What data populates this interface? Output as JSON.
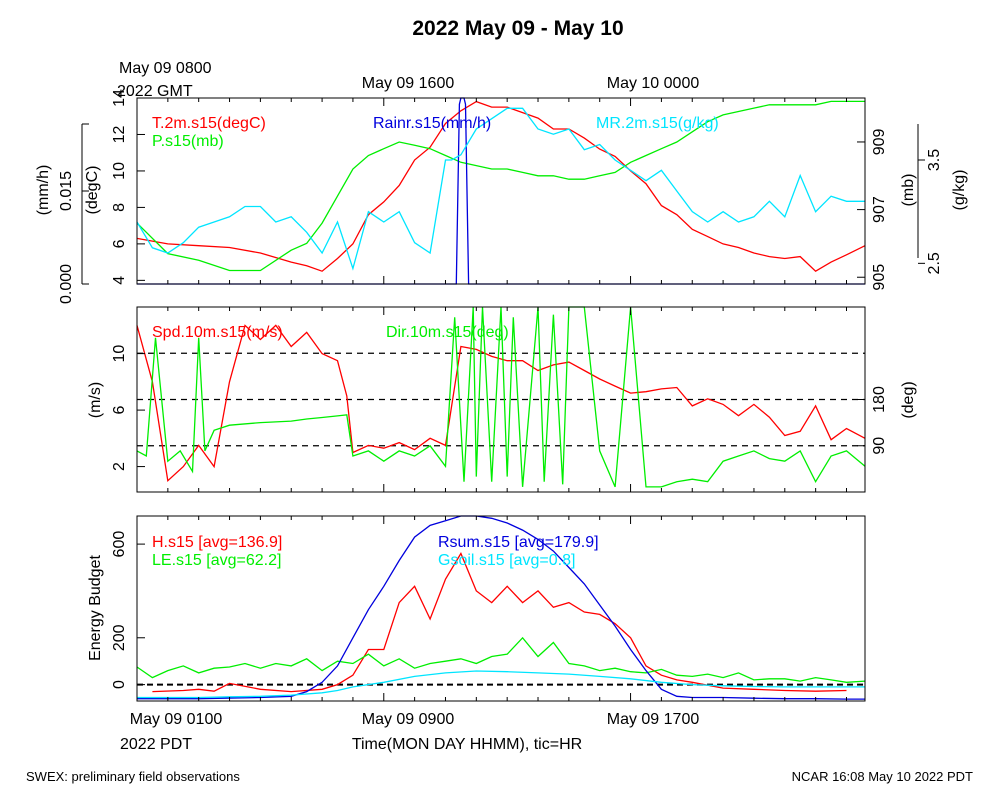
{
  "title": "2022 May 09 - May 10",
  "top_labels": {
    "gmt_start": "May 09 0800",
    "gmt_year": "2022 GMT",
    "gmt_mid": "May 09 1600",
    "gmt_end": "May 10 0000"
  },
  "bottom_labels": {
    "pdt_start": "May 09 0100",
    "pdt_year": "2022 PDT",
    "pdt_mid": "May 09 0900",
    "pdt_end": "May 09 1700"
  },
  "xlabel": "Time(MON DAY HHMM), tic=HR",
  "footer": {
    "left": "SWEX: preliminary field observations",
    "right": "NCAR 16:08 May 10 2022 PDT"
  },
  "colors": {
    "red": "#ff0000",
    "green": "#00ee00",
    "blue": "#0000dd",
    "cyan": "#00e5ff",
    "black": "#000000"
  },
  "chart_data": [
    {
      "type": "line",
      "x_range_hours_pdt": [
        1,
        24.6
      ],
      "legend": {
        "t2m": "T.2m.s15(degC)",
        "p": "P.s15(mb)",
        "rain": "Rainr.s15(mm/h)",
        "mr": "MR.2m.s15(g/kg)"
      },
      "axes": {
        "left_inner": {
          "label": "(degC)",
          "range": [
            3.8,
            14
          ],
          "ticks": [
            "4",
            "6",
            "8",
            "10",
            "12",
            "14"
          ]
        },
        "left_outer": {
          "label": "(mm/h)",
          "range": [
            0,
            0.03
          ],
          "ticks": [
            "0.000",
            "0.015"
          ]
        },
        "right_inner": {
          "label": "(mb)",
          "range": [
            904.8,
            910.3
          ],
          "ticks": [
            "905",
            "907",
            "909"
          ]
        },
        "right_outer": {
          "label": "(g/kg)",
          "range": [
            2.3,
            4.1
          ],
          "ticks": [
            "2.5",
            "3.5"
          ]
        }
      },
      "series": [
        {
          "name": "T.2m.s15(degC)",
          "axis": "left_inner",
          "color": "red",
          "x": [
            1,
            2,
            3,
            4,
            5,
            6,
            6.5,
            7,
            7.5,
            8,
            8.5,
            9,
            9.5,
            10,
            10.5,
            11,
            11.5,
            12,
            12.5,
            13,
            13.5,
            14,
            14.5,
            15,
            15.5,
            16,
            16.5,
            17,
            17.5,
            18,
            18.5,
            19,
            19.5,
            20,
            20.5,
            21,
            21.5,
            22,
            22.5,
            23,
            23.5,
            24,
            24.6
          ],
          "y": [
            6.3,
            6,
            5.9,
            5.8,
            5.5,
            5,
            4.8,
            4.5,
            5.2,
            6,
            7.6,
            8.3,
            9.2,
            10.6,
            11.3,
            12.6,
            13.3,
            13.8,
            13.5,
            13.5,
            13.2,
            12.9,
            12.3,
            12.3,
            11.8,
            11.2,
            10.8,
            10,
            9.3,
            8.1,
            7.6,
            6.8,
            6.4,
            6,
            5.8,
            5.5,
            5.3,
            5.2,
            5.3,
            4.5,
            5,
            5.4,
            5.9
          ]
        },
        {
          "name": "P.s15(mb)",
          "axis": "right_inner",
          "color": "green",
          "x": [
            1,
            2,
            3,
            4,
            5,
            6,
            6.5,
            7,
            7.5,
            8,
            8.5,
            9,
            9.5,
            10,
            10.5,
            11,
            11.5,
            12,
            12.5,
            13,
            13.5,
            14,
            14.5,
            15,
            15.5,
            16,
            16.5,
            17,
            17.5,
            18,
            18.5,
            19,
            19.5,
            20,
            20.5,
            21,
            21.5,
            22,
            22.5,
            23,
            23.5,
            24,
            24.6
          ],
          "y": [
            906.6,
            905.7,
            905.5,
            905.2,
            905.2,
            905.8,
            906,
            906.6,
            907.4,
            908.2,
            908.6,
            908.8,
            909,
            908.9,
            908.8,
            908.6,
            908.4,
            908.3,
            908.2,
            908.2,
            908.1,
            908.0,
            908.0,
            907.9,
            907.9,
            908.0,
            908.1,
            908.4,
            908.6,
            908.8,
            909.0,
            909.3,
            909.6,
            909.8,
            909.9,
            910.0,
            910.1,
            910.1,
            910.1,
            910.1,
            910.2,
            910.2,
            910.2
          ]
        },
        {
          "name": "Rainr.s15(mm/h)",
          "axis": "left_outer",
          "color": "blue",
          "x": [
            1,
            11.35,
            11.45,
            11.5,
            11.55,
            11.6,
            11.65,
            11.75,
            24.6
          ],
          "y": [
            0,
            0,
            0.029,
            0.03,
            0.031,
            0.03,
            0.029,
            0,
            0
          ]
        },
        {
          "name": "MR.2m.s15(g/kg)",
          "axis": "right_outer",
          "color": "cyan",
          "x": [
            1,
            1.5,
            2,
            2.5,
            3,
            3.5,
            4,
            4.5,
            5,
            5.5,
            6,
            6.5,
            7,
            7.5,
            8,
            8.5,
            9,
            9.5,
            10,
            10.5,
            11,
            11.2,
            11.5,
            12,
            12.5,
            13,
            13.5,
            14,
            14.5,
            15,
            15.5,
            16,
            16.5,
            17,
            17.5,
            18,
            18.5,
            19,
            19.5,
            20,
            20.5,
            21,
            21.5,
            22,
            22.5,
            23,
            23.5,
            24,
            24.6
          ],
          "y": [
            2.9,
            2.65,
            2.6,
            2.7,
            2.85,
            2.9,
            2.95,
            3.05,
            3.05,
            2.9,
            2.95,
            2.8,
            2.6,
            2.9,
            2.45,
            3.0,
            2.9,
            3.0,
            2.7,
            2.6,
            3.5,
            3.5,
            3.55,
            3.8,
            3.9,
            4.0,
            4.0,
            3.8,
            3.75,
            3.8,
            3.6,
            3.65,
            3.5,
            3.4,
            3.3,
            3.4,
            3.2,
            3.0,
            2.9,
            3.0,
            2.9,
            2.95,
            3.1,
            2.95,
            3.35,
            3.0,
            3.15,
            3.1,
            3.1
          ]
        }
      ]
    },
    {
      "type": "line",
      "x_range_hours_pdt": [
        1,
        24.6
      ],
      "legend": {
        "spd": "Spd.10m.s15(m/s)",
        "dir": "Dir.10m.s15(deg)"
      },
      "axes": {
        "left": {
          "label": "(m/s)",
          "range": [
            0.2,
            13.3
          ],
          "ticks": [
            "2",
            "6",
            "10"
          ]
        },
        "right": {
          "label": "(deg)",
          "range": [
            0,
            360
          ],
          "ticks": [
            "90",
            "180"
          ]
        }
      },
      "reference_lines_deg": [
        90,
        180,
        270
      ],
      "series": [
        {
          "name": "Spd.10m.s15(m/s)",
          "axis": "left",
          "color": "red",
          "x": [
            1,
            1.5,
            2,
            2.5,
            3,
            3.5,
            4,
            4.5,
            5,
            5.5,
            6,
            6.5,
            7,
            7.5,
            7.8,
            8,
            8.5,
            9,
            9.5,
            10,
            10.5,
            11,
            11.5,
            12,
            12.5,
            13,
            13.5,
            14,
            14.5,
            15,
            15.5,
            16,
            16.5,
            17,
            17.5,
            18,
            18.5,
            19,
            19.5,
            20,
            20.5,
            21,
            21.5,
            22,
            22.5,
            23,
            23.5,
            24,
            24.6
          ],
          "y": [
            12,
            8,
            1,
            2,
            3.5,
            2,
            8,
            12,
            11,
            12,
            10.5,
            11.5,
            10,
            9.5,
            7,
            3,
            3.5,
            3.3,
            3.7,
            3.2,
            4,
            3.5,
            10.5,
            10.3,
            9.8,
            9.5,
            9.5,
            8.8,
            9.2,
            9.4,
            8.8,
            8.2,
            7.7,
            7.2,
            7.3,
            7.5,
            7.6,
            6.3,
            6.8,
            6.4,
            5.6,
            6.4,
            5.5,
            4.2,
            4.5,
            6.3,
            3.9,
            4.7,
            4
          ]
        },
        {
          "name": "Dir.10m.s15(deg)",
          "axis": "right",
          "color": "green",
          "x": [
            1,
            1.3,
            1.6,
            2,
            2.4,
            2.8,
            3,
            3.2,
            3.5,
            4,
            5,
            6,
            6.5,
            7,
            7.5,
            7.8,
            8,
            8.5,
            9,
            9.5,
            10,
            10.5,
            11,
            11.3,
            11.6,
            11.9,
            12,
            12.2,
            12.5,
            12.8,
            13,
            13.2,
            13.5,
            14,
            14.2,
            14.5,
            14.8,
            15,
            15.5,
            16,
            16.5,
            17,
            17.5,
            18,
            18.5,
            19,
            19.5,
            20,
            20.5,
            21,
            21.5,
            22,
            22.5,
            23,
            23.5,
            24,
            24.6
          ],
          "y": [
            80,
            70,
            300,
            60,
            80,
            40,
            300,
            80,
            120,
            130,
            135,
            138,
            142,
            145,
            148,
            150,
            70,
            80,
            60,
            80,
            70,
            90,
            50,
            340,
            20,
            360,
            30,
            360,
            20,
            360,
            30,
            340,
            10,
            360,
            20,
            345,
            15,
            360,
            360,
            80,
            10,
            360,
            10,
            10,
            20,
            25,
            20,
            60,
            70,
            80,
            65,
            60,
            80,
            20,
            70,
            80,
            50
          ]
        }
      ]
    },
    {
      "type": "line",
      "x_range_hours_pdt": [
        1,
        24.6
      ],
      "legend": {
        "h": "H.s15 [avg=136.9]",
        "le": "LE.s15 [avg=62.2]",
        "rsum": "Rsum.s15 [avg=179.9]",
        "gsoil": "Gsoil.s15 [avg=0.8]"
      },
      "axes": {
        "left": {
          "label": "Energy Budget",
          "range": [
            -70,
            720
          ],
          "ticks": [
            "0",
            "200",
            "600"
          ]
        }
      },
      "reference_lines": [
        0
      ],
      "series": [
        {
          "name": "H.s15 [avg=136.9]",
          "color": "red",
          "x": [
            1.5,
            2.5,
            3,
            3.5,
            4,
            5,
            6,
            7,
            7.5,
            8,
            8.5,
            9,
            9.5,
            10,
            10.5,
            11,
            11.5,
            12,
            12.5,
            13,
            13.5,
            14,
            14.5,
            15,
            15.5,
            16,
            16.5,
            17,
            17.5,
            18,
            18.5,
            19,
            20,
            21,
            22,
            23,
            24
          ],
          "y": [
            -30,
            -25,
            -20,
            -28,
            5,
            -20,
            -30,
            -20,
            0,
            40,
            150,
            150,
            350,
            420,
            280,
            450,
            560,
            400,
            350,
            420,
            350,
            400,
            330,
            350,
            310,
            300,
            260,
            200,
            80,
            40,
            20,
            10,
            -15,
            -20,
            -25,
            -28,
            -25
          ]
        },
        {
          "name": "LE.s15 [avg=62.2]",
          "color": "green",
          "x": [
            1,
            1.5,
            2,
            2.5,
            3,
            3.5,
            4,
            4.5,
            5,
            5.5,
            6,
            6.5,
            7,
            7.5,
            8,
            8.5,
            9,
            9.5,
            10,
            10.5,
            11,
            11.5,
            12,
            12.5,
            13,
            13.5,
            14,
            14.5,
            15,
            15.5,
            16,
            16.5,
            17,
            17.5,
            18,
            18.5,
            19,
            19.5,
            20,
            20.5,
            21,
            21.5,
            22,
            22.5,
            23,
            23.5,
            24,
            24.6
          ],
          "y": [
            75,
            30,
            60,
            80,
            50,
            70,
            75,
            90,
            70,
            90,
            80,
            110,
            60,
            100,
            90,
            130,
            80,
            110,
            70,
            90,
            100,
            110,
            90,
            120,
            130,
            200,
            120,
            180,
            90,
            80,
            60,
            70,
            55,
            50,
            65,
            40,
            35,
            45,
            30,
            50,
            20,
            25,
            25,
            15,
            30,
            20,
            10,
            15
          ]
        },
        {
          "name": "Rsum.s15 [avg=179.9]",
          "color": "blue",
          "x": [
            1,
            3,
            5,
            6,
            6.5,
            7,
            7.5,
            8,
            8.5,
            9,
            9.5,
            10,
            10.5,
            11,
            11.5,
            12,
            12.5,
            13,
            13.5,
            14,
            14.5,
            15,
            15.5,
            16,
            16.5,
            17,
            17.5,
            18,
            18.5,
            19,
            20,
            21,
            22,
            23,
            24,
            24.6
          ],
          "y": [
            -60,
            -60,
            -55,
            -50,
            -30,
            10,
            80,
            200,
            320,
            420,
            530,
            630,
            680,
            700,
            720,
            720,
            710,
            690,
            660,
            620,
            570,
            500,
            430,
            340,
            250,
            150,
            60,
            -20,
            -50,
            -55,
            -55,
            -58,
            -60,
            -60,
            -62,
            -62
          ]
        },
        {
          "name": "Gsoil.s15 [avg=0.8]",
          "color": "cyan",
          "x": [
            1,
            2,
            3,
            4,
            5,
            6,
            7,
            7.5,
            8,
            9,
            10,
            11,
            12,
            13,
            14,
            15,
            16,
            17,
            18,
            19,
            20,
            21,
            22,
            23,
            24,
            24.6
          ],
          "y": [
            -55,
            -55,
            -55,
            -52,
            -50,
            -45,
            -35,
            -25,
            -10,
            10,
            35,
            50,
            58,
            55,
            50,
            45,
            35,
            25,
            10,
            0,
            -5,
            -8,
            -10,
            -10,
            -10,
            -10
          ]
        }
      ]
    }
  ]
}
